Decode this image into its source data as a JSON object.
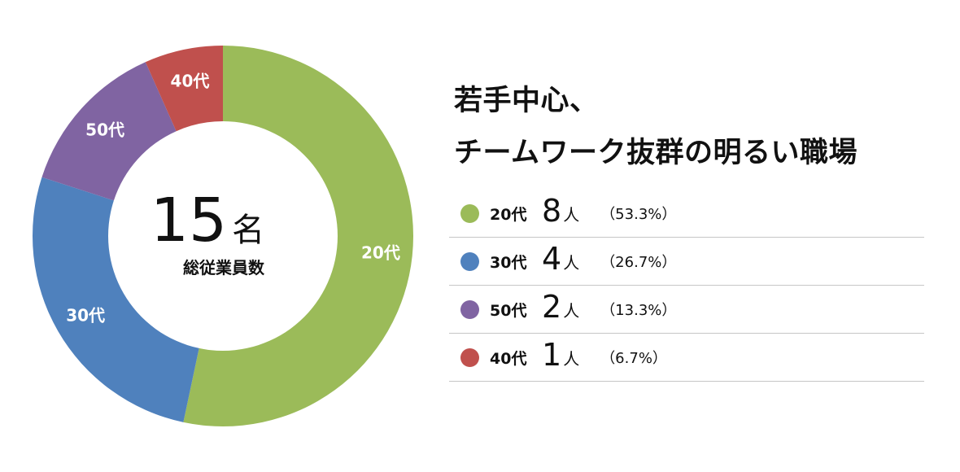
{
  "headline": {
    "line1": "若手中心、",
    "line2": "チームワーク抜群の明るい職場"
  },
  "center": {
    "total": "15",
    "unit": "名",
    "caption": "総従業員数"
  },
  "legend": [
    {
      "category": "20代",
      "count": "8",
      "unit": "人",
      "percent": "（53.3%）"
    },
    {
      "category": "30代",
      "count": "4",
      "unit": "人",
      "percent": "（26.7%）"
    },
    {
      "category": "50代",
      "count": "2",
      "unit": "人",
      "percent": "（13.3%）"
    },
    {
      "category": "40代",
      "count": "1",
      "unit": "人",
      "percent": "（6.7%）"
    }
  ],
  "chart_data": {
    "type": "pie",
    "variant": "donut",
    "categories": [
      "20代",
      "30代",
      "50代",
      "40代"
    ],
    "values": [
      8,
      4,
      2,
      1
    ],
    "percentages": [
      53.3,
      26.7,
      13.3,
      6.7
    ],
    "colors": [
      "#9bbb59",
      "#4f81bd",
      "#8064a2",
      "#c0504d"
    ],
    "start": "top",
    "direction": "clockwise",
    "legend": "right"
  }
}
